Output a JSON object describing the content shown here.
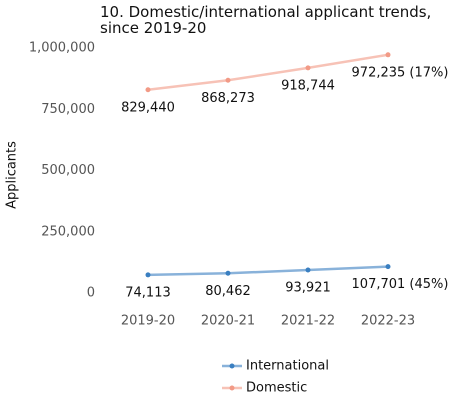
{
  "chart_data": {
    "type": "line",
    "title": "10. Domestic/international applicant trends, since 2019-20",
    "y_label": "Applicants",
    "categories": [
      "2019-20",
      "2020-21",
      "2021-22",
      "2022-23"
    ],
    "series": [
      {
        "name": "International",
        "color": "#3a7fc1",
        "values": [
          74113,
          80462,
          93921,
          107701
        ],
        "value_labels": [
          "74,113",
          "80,462",
          "93,921",
          "107,701 (45%)"
        ]
      },
      {
        "name": "Domestic",
        "color": "#f29a86",
        "values": [
          829440,
          868273,
          918744,
          972235
        ],
        "value_labels": [
          "829,440",
          "868,273",
          "918,744",
          "972,235 (17%)"
        ]
      }
    ],
    "ylim": [
      0,
      1000000
    ],
    "yticks": [
      {
        "value": 0,
        "label": "0"
      },
      {
        "value": 250000,
        "label": "250,000"
      },
      {
        "value": 500000,
        "label": "500,000"
      },
      {
        "value": 750000,
        "label": "750,000"
      },
      {
        "value": 1000000,
        "label": "1,000,000"
      }
    ],
    "grid": false,
    "legend": "bottom"
  }
}
